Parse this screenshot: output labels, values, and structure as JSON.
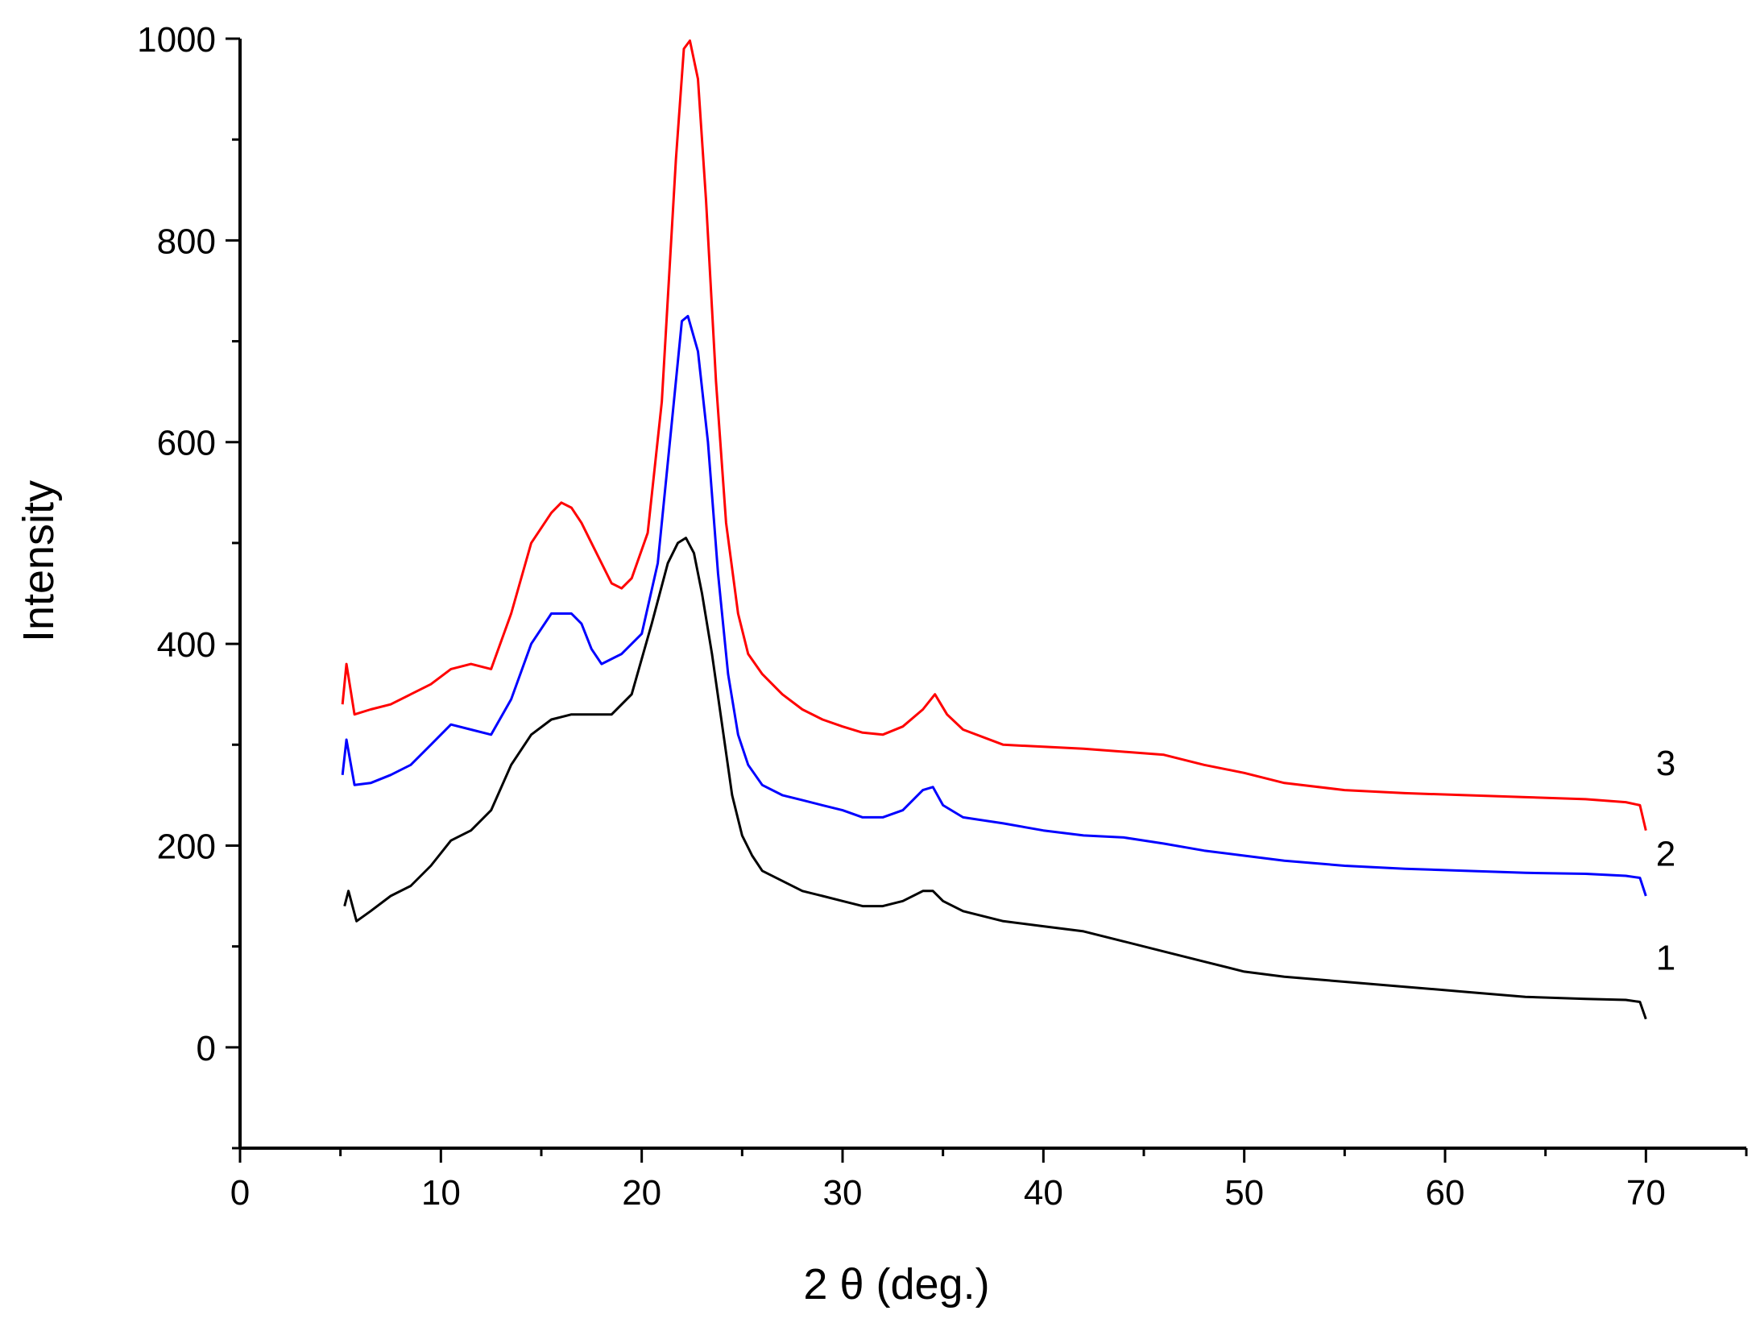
{
  "chart_data": {
    "type": "line",
    "title": "",
    "xlabel": "2 θ (deg.)",
    "ylabel": "Intensity",
    "xlim": [
      0,
      75
    ],
    "ylim": [
      -100,
      1000
    ],
    "xticks": [
      "0",
      "10",
      "20",
      "30",
      "40",
      "50",
      "60",
      "70"
    ],
    "yticks": [
      "0",
      "200",
      "400",
      "600",
      "800",
      "1000"
    ],
    "xtick_values": [
      0,
      10,
      20,
      30,
      40,
      50,
      60,
      70
    ],
    "ytick_values": [
      0,
      200,
      400,
      600,
      800,
      1000
    ],
    "grid": false,
    "series": [
      {
        "name": "1",
        "color": "#000000",
        "x": [
          5.2,
          5.4,
          5.8,
          6.5,
          7.5,
          8.5,
          9.5,
          10.5,
          11.5,
          12.5,
          13.5,
          14.5,
          15.5,
          16.5,
          17.5,
          18.5,
          19.5,
          20.5,
          21.3,
          21.8,
          22.2,
          22.6,
          23.0,
          23.5,
          24.0,
          24.5,
          25.0,
          25.5,
          26.0,
          27.0,
          28.0,
          29.0,
          30.0,
          31.0,
          32.0,
          33.0,
          34.0,
          34.5,
          35.0,
          36.0,
          38.0,
          40.0,
          42.0,
          44.0,
          46.0,
          48.0,
          50.0,
          52.0,
          55.0,
          58.0,
          61.0,
          64.0,
          67.0,
          69.0,
          69.7,
          70.0
        ],
        "y": [
          140,
          155,
          125,
          135,
          150,
          160,
          180,
          205,
          215,
          235,
          280,
          310,
          325,
          330,
          330,
          330,
          350,
          420,
          480,
          500,
          505,
          490,
          450,
          390,
          320,
          250,
          210,
          190,
          175,
          165,
          155,
          150,
          145,
          140,
          140,
          145,
          155,
          155,
          145,
          135,
          125,
          120,
          115,
          105,
          95,
          85,
          75,
          70,
          65,
          60,
          55,
          50,
          48,
          47,
          45,
          28
        ]
      },
      {
        "name": "2",
        "color": "#0000ff",
        "x": [
          5.1,
          5.3,
          5.7,
          6.5,
          7.5,
          8.5,
          9.5,
          10.5,
          11.5,
          12.5,
          13.5,
          14.5,
          15.5,
          16.5,
          17.0,
          17.5,
          18.0,
          19.0,
          20.0,
          20.8,
          21.5,
          22.0,
          22.3,
          22.8,
          23.3,
          23.8,
          24.3,
          24.8,
          25.3,
          26.0,
          27.0,
          28.0,
          29.0,
          30.0,
          31.0,
          32.0,
          33.0,
          34.0,
          34.5,
          35.0,
          36.0,
          38.0,
          40.0,
          42.0,
          44.0,
          46.0,
          48.0,
          50.0,
          52.0,
          55.0,
          58.0,
          61.0,
          64.0,
          67.0,
          69.0,
          69.7,
          70.0
        ],
        "y": [
          270,
          305,
          260,
          262,
          270,
          280,
          300,
          320,
          315,
          310,
          345,
          400,
          430,
          430,
          420,
          395,
          380,
          390,
          410,
          480,
          620,
          720,
          725,
          690,
          600,
          470,
          370,
          310,
          280,
          260,
          250,
          245,
          240,
          235,
          228,
          228,
          235,
          255,
          258,
          240,
          228,
          222,
          215,
          210,
          208,
          202,
          195,
          190,
          185,
          180,
          177,
          175,
          173,
          172,
          170,
          168,
          150
        ]
      },
      {
        "name": "3",
        "color": "#ff0000",
        "x": [
          5.1,
          5.3,
          5.7,
          6.5,
          7.5,
          8.5,
          9.5,
          10.5,
          11.5,
          12.5,
          13.5,
          14.5,
          15.5,
          16.0,
          16.5,
          17.0,
          17.5,
          18.5,
          19.0,
          19.5,
          20.3,
          21.0,
          21.7,
          22.1,
          22.4,
          22.8,
          23.2,
          23.7,
          24.2,
          24.8,
          25.3,
          26.0,
          27.0,
          28.0,
          29.0,
          30.0,
          31.0,
          32.0,
          33.0,
          34.0,
          34.6,
          35.2,
          36.0,
          38.0,
          40.0,
          42.0,
          44.0,
          46.0,
          48.0,
          50.0,
          52.0,
          55.0,
          58.0,
          61.0,
          64.0,
          67.0,
          69.0,
          69.7,
          70.0
        ],
        "y": [
          340,
          380,
          330,
          335,
          340,
          350,
          360,
          375,
          380,
          375,
          430,
          500,
          530,
          540,
          535,
          520,
          500,
          460,
          455,
          465,
          510,
          640,
          880,
          990,
          998,
          960,
          840,
          660,
          520,
          430,
          390,
          370,
          350,
          335,
          325,
          318,
          312,
          310,
          318,
          335,
          350,
          330,
          315,
          300,
          298,
          296,
          293,
          290,
          280,
          272,
          262,
          255,
          252,
          250,
          248,
          246,
          243,
          240,
          215
        ]
      }
    ],
    "annotations": [
      {
        "text": "1",
        "x": 70.5,
        "y": 77
      },
      {
        "text": "2",
        "x": 70.5,
        "y": 180
      },
      {
        "text": "3",
        "x": 70.5,
        "y": 270
      }
    ]
  }
}
